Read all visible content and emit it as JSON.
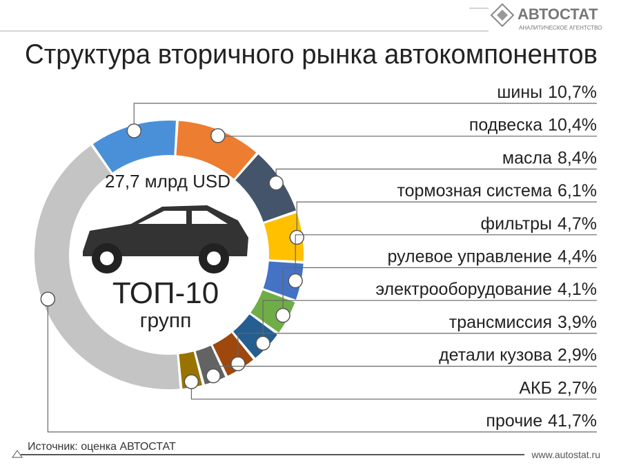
{
  "chart_data": {
    "type": "donut",
    "title": "Структура вторичного рынка автокомпонентов",
    "center_texts": [
      "27,7 млрд USD",
      "ТОП-10",
      "групп"
    ],
    "categories": [
      "шины",
      "подвеска",
      "масла",
      "тормозная система",
      "фильтры",
      "рулевое управление",
      "электрооборудование",
      "трансмиссия",
      "детали кузова",
      "АКБ",
      "прочие"
    ],
    "values": [
      10.7,
      10.4,
      8.4,
      6.1,
      4.7,
      4.4,
      4.1,
      3.9,
      2.9,
      2.7,
      41.7
    ],
    "value_labels": [
      "10,7%",
      "10,4%",
      "8,4%",
      "6,1%",
      "4,7%",
      "4,4%",
      "4,1%",
      "3,9%",
      "2,9%",
      "2,7%",
      "41,7%"
    ],
    "colors": [
      "#4a90d9",
      "#ed7d31",
      "#44546a",
      "#ffc000",
      "#4472c4",
      "#70ad47",
      "#255e91",
      "#9e480e",
      "#636363",
      "#997300",
      "#c4c4c4"
    ],
    "source": "Источник: оценка АВТОСТАТ"
  },
  "logo": {
    "name": "АВТОСТАТ",
    "tagline": "АНАЛИТИЧЕСКОЕ АГЕНТСТВО"
  },
  "footer": {
    "url": "www.autostat.ru"
  }
}
